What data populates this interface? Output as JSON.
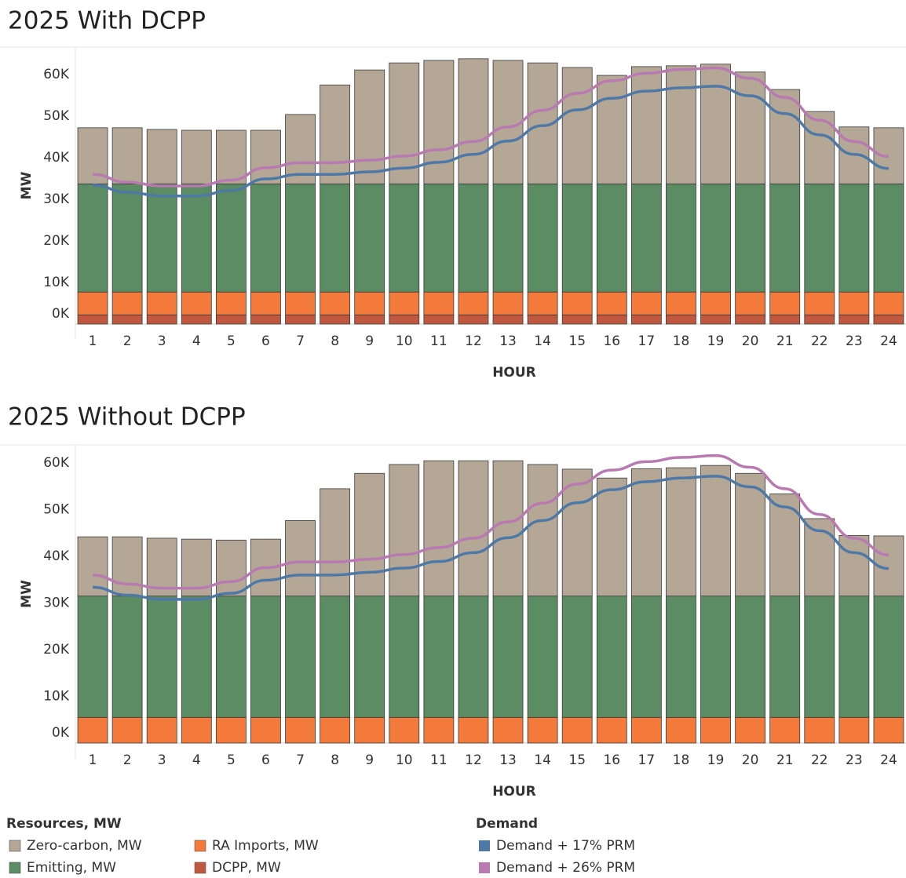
{
  "chart_data": [
    {
      "type": "bar",
      "stacked": true,
      "title": "2025  With DCPP",
      "x_label": "HOUR",
      "y_label": "MW",
      "categories": [
        "1",
        "2",
        "3",
        "4",
        "5",
        "6",
        "7",
        "8",
        "9",
        "10",
        "11",
        "12",
        "13",
        "14",
        "15",
        "16",
        "17",
        "18",
        "19",
        "20",
        "21",
        "22",
        "23",
        "24"
      ],
      "ylim": [
        0,
        66600
      ],
      "yticks": [
        {
          "value": 0,
          "label": "0K"
        },
        {
          "value": 10000,
          "label": "10K"
        },
        {
          "value": 20000,
          "label": "20K"
        },
        {
          "value": 30000,
          "label": "30K"
        },
        {
          "value": 40000,
          "label": "40K"
        },
        {
          "value": 50000,
          "label": "50K"
        },
        {
          "value": 60000,
          "label": "60K"
        }
      ],
      "series": [
        {
          "name": "Zero-carbon, MW",
          "type": "bar",
          "color": "#b5a795",
          "values": [
            13500,
            13500,
            13100,
            12900,
            12900,
            12900,
            16700,
            23800,
            27400,
            29100,
            29700,
            30100,
            29700,
            29100,
            28000,
            26100,
            28200,
            28400,
            28800,
            26900,
            22700,
            17400,
            13700,
            13500
          ]
        },
        {
          "name": "Emitting, MW",
          "type": "bar",
          "color": "#5b8c63",
          "values": [
            26000,
            26000,
            26000,
            26000,
            26000,
            26000,
            26000,
            26000,
            26000,
            26000,
            26000,
            26000,
            26000,
            26000,
            26000,
            26000,
            26000,
            26000,
            26000,
            26000,
            26000,
            26000,
            26000,
            26000
          ]
        },
        {
          "name": "RA Imports, MW",
          "type": "bar",
          "color": "#f47a3c",
          "values": [
            5500,
            5500,
            5500,
            5500,
            5500,
            5500,
            5500,
            5500,
            5500,
            5500,
            5500,
            5500,
            5500,
            5500,
            5500,
            5500,
            5500,
            5500,
            5500,
            5500,
            5500,
            5500,
            5500,
            5500
          ]
        },
        {
          "name": "DCPP, MW",
          "type": "bar",
          "color": "#c0583f",
          "values": [
            2200,
            2200,
            2200,
            2200,
            2200,
            2200,
            2200,
            2200,
            2200,
            2200,
            2200,
            2200,
            2200,
            2200,
            2200,
            2200,
            2200,
            2200,
            2200,
            2200,
            2200,
            2200,
            2200,
            2200
          ]
        },
        {
          "name": "Demand + 17% PRM",
          "type": "line",
          "color": "#4e79a7",
          "values": [
            33400,
            31700,
            30800,
            30800,
            32100,
            34900,
            36000,
            36000,
            36600,
            37500,
            38900,
            40800,
            44000,
            47700,
            51500,
            54300,
            56000,
            56800,
            57200,
            54900,
            50600,
            45500,
            40800,
            37400
          ]
        },
        {
          "name": "Demand + 26% PRM",
          "type": "line",
          "color": "#b87ab0",
          "values": [
            36000,
            34100,
            33200,
            33200,
            34600,
            37600,
            38800,
            38800,
            39400,
            40400,
            41900,
            43900,
            47400,
            51400,
            55500,
            58500,
            60300,
            61200,
            61600,
            59100,
            54500,
            49000,
            43900,
            40300
          ]
        }
      ]
    },
    {
      "type": "bar",
      "stacked": true,
      "title": "2025  Without DCPP",
      "x_label": "HOUR",
      "y_label": "MW",
      "categories": [
        "1",
        "2",
        "3",
        "4",
        "5",
        "6",
        "7",
        "8",
        "9",
        "10",
        "11",
        "12",
        "13",
        "14",
        "15",
        "16",
        "17",
        "18",
        "19",
        "20",
        "21",
        "22",
        "23",
        "24"
      ],
      "ylim": [
        0,
        63900
      ],
      "yticks": [
        {
          "value": 0,
          "label": "0K"
        },
        {
          "value": 10000,
          "label": "10K"
        },
        {
          "value": 20000,
          "label": "20K"
        },
        {
          "value": 30000,
          "label": "30K"
        },
        {
          "value": 40000,
          "label": "40K"
        },
        {
          "value": 50000,
          "label": "50K"
        },
        {
          "value": 60000,
          "label": "60K"
        }
      ],
      "series": [
        {
          "name": "Zero-carbon, MW",
          "type": "bar",
          "color": "#b5a795",
          "values": [
            12700,
            12700,
            12400,
            12200,
            12000,
            12200,
            16200,
            23000,
            26300,
            28200,
            29000,
            29000,
            29000,
            28200,
            27200,
            25300,
            27300,
            27500,
            28000,
            26300,
            21900,
            16600,
            13000,
            12900
          ]
        },
        {
          "name": "Emitting, MW",
          "type": "bar",
          "color": "#5b8c63",
          "values": [
            26000,
            26000,
            26000,
            26000,
            26000,
            26000,
            26000,
            26000,
            26000,
            26000,
            26000,
            26000,
            26000,
            26000,
            26000,
            26000,
            26000,
            26000,
            26000,
            26000,
            26000,
            26000,
            26000,
            26000
          ]
        },
        {
          "name": "RA Imports, MW",
          "type": "bar",
          "color": "#f47a3c",
          "values": [
            5500,
            5500,
            5500,
            5500,
            5500,
            5500,
            5500,
            5500,
            5500,
            5500,
            5500,
            5500,
            5500,
            5500,
            5500,
            5500,
            5500,
            5500,
            5500,
            5500,
            5500,
            5500,
            5500,
            5500
          ]
        },
        {
          "name": "Demand + 17% PRM",
          "type": "line",
          "color": "#4e79a7",
          "values": [
            33400,
            31700,
            30800,
            30800,
            32100,
            34900,
            36000,
            36000,
            36600,
            37500,
            38900,
            40800,
            44000,
            47700,
            51500,
            54300,
            56000,
            56800,
            57200,
            54900,
            50600,
            45500,
            40800,
            37400
          ]
        },
        {
          "name": "Demand + 26% PRM",
          "type": "line",
          "color": "#b87ab0",
          "values": [
            36000,
            34100,
            33200,
            33200,
            34600,
            37600,
            38800,
            38800,
            39400,
            40400,
            41900,
            43900,
            47400,
            51400,
            55500,
            58500,
            60300,
            61200,
            61600,
            59100,
            54500,
            49000,
            43900,
            40300
          ]
        }
      ]
    }
  ],
  "legend": {
    "groups": [
      {
        "title": "Resources, MW"
      },
      {
        "title": "Demand"
      }
    ]
  }
}
